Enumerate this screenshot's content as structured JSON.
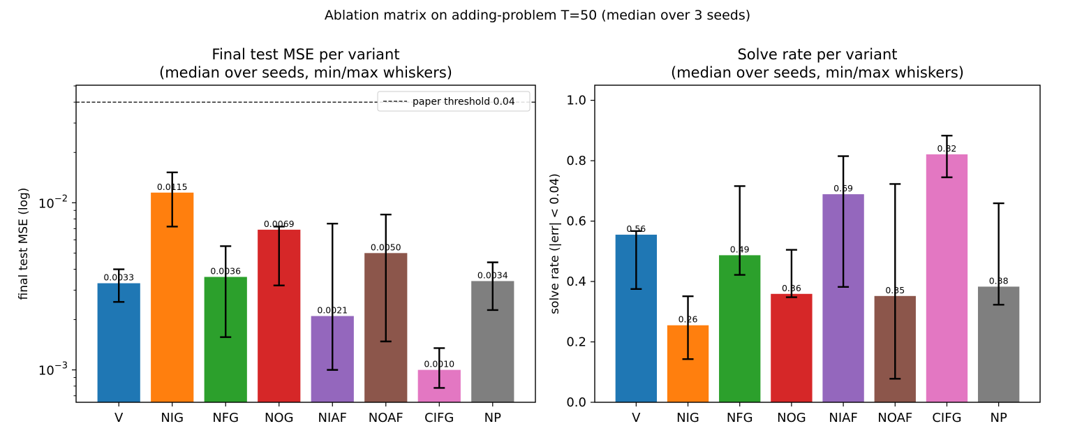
{
  "figure": {
    "suptitle": "Ablation matrix on adding-problem T=50 (median over 3 seeds)"
  },
  "chart_data": [
    {
      "type": "bar",
      "title": "Final test MSE per variant\n(median over seeds, min/max whiskers)",
      "xlabel": "",
      "ylabel": "final test MSE (log)",
      "yscale": "log",
      "ylim": [
        0.00064,
        0.0505
      ],
      "ytick_values": [
        0.001,
        0.01
      ],
      "ytick_labels": [
        "10^-3",
        "10^-2"
      ],
      "categories": [
        "V",
        "NIG",
        "NFG",
        "NOG",
        "NIAF",
        "NOAF",
        "CIFG",
        "NP"
      ],
      "values": [
        0.0033,
        0.0115,
        0.0036,
        0.0069,
        0.0021,
        0.005,
        0.001,
        0.0034
      ],
      "value_labels": [
        "0.0033",
        "0.0115",
        "0.0036",
        "0.0069",
        "0.0021",
        "0.0050",
        "0.0010",
        "0.0034"
      ],
      "err_min": [
        0.00255,
        0.0072,
        0.00157,
        0.0032,
        0.001,
        0.00148,
        0.00078,
        0.00228
      ],
      "err_max": [
        0.004,
        0.0152,
        0.0055,
        0.0072,
        0.0075,
        0.0085,
        0.00135,
        0.0044
      ],
      "colors": [
        "#1f77b4",
        "#ff7f0e",
        "#2ca02c",
        "#d62728",
        "#9467bd",
        "#8c564b",
        "#e377c2",
        "#7f7f7f"
      ],
      "reference_line": {
        "value": 0.04,
        "label": "paper threshold 0.04",
        "style": "dashed"
      },
      "legend": {
        "placement": "upper-right",
        "entries": [
          "paper threshold 0.04"
        ]
      },
      "grid": false
    },
    {
      "type": "bar",
      "title": "Solve rate per variant\n(median over seeds, min/max whiskers)",
      "xlabel": "",
      "ylabel": "solve rate (|err| < 0.04)",
      "yscale": "linear",
      "ylim": [
        0,
        1.05
      ],
      "ytick_values": [
        0,
        0.2,
        0.4,
        0.6,
        0.8,
        1.0
      ],
      "ytick_labels": [
        "0.0",
        "0.2",
        "0.4",
        "0.6",
        "0.8",
        "1.0"
      ],
      "categories": [
        "V",
        "NIG",
        "NFG",
        "NOG",
        "NIAF",
        "NOAF",
        "CIFG",
        "NP"
      ],
      "values": [
        0.555,
        0.255,
        0.487,
        0.359,
        0.689,
        0.352,
        0.821,
        0.383
      ],
      "value_labels": [
        "0.56",
        "0.26",
        "0.49",
        "0.36",
        "0.69",
        "0.35",
        "0.82",
        "0.38"
      ],
      "err_min": [
        0.375,
        0.143,
        0.422,
        0.348,
        0.382,
        0.078,
        0.745,
        0.323
      ],
      "err_max": [
        0.567,
        0.351,
        0.716,
        0.505,
        0.815,
        0.723,
        0.883,
        0.659
      ],
      "colors": [
        "#1f77b4",
        "#ff7f0e",
        "#2ca02c",
        "#d62728",
        "#9467bd",
        "#8c564b",
        "#e377c2",
        "#7f7f7f"
      ],
      "grid": false
    }
  ]
}
